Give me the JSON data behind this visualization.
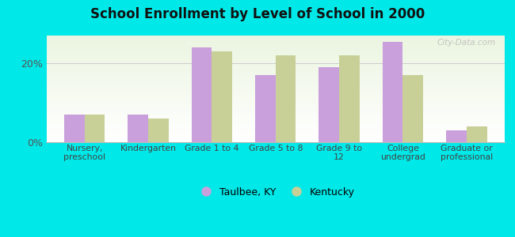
{
  "title": "School Enrollment by Level of School in 2000",
  "categories": [
    "Nursery,\npreschool",
    "Kindergarten",
    "Grade 1 to 4",
    "Grade 5 to 8",
    "Grade 9 to\n12",
    "College\nundergrad",
    "Graduate or\nprofessional"
  ],
  "taulbee": [
    7.0,
    7.0,
    24.0,
    17.0,
    19.0,
    25.5,
    3.0
  ],
  "kentucky": [
    7.0,
    6.0,
    23.0,
    22.0,
    22.0,
    17.0,
    4.0
  ],
  "taulbee_color": "#c9a0dc",
  "kentucky_color": "#c8d098",
  "background_outer": "#00e8e8",
  "ylim": [
    0,
    27
  ],
  "bar_width": 0.32,
  "legend_labels": [
    "Taulbee, KY",
    "Kentucky"
  ],
  "watermark": "City-Data.com"
}
